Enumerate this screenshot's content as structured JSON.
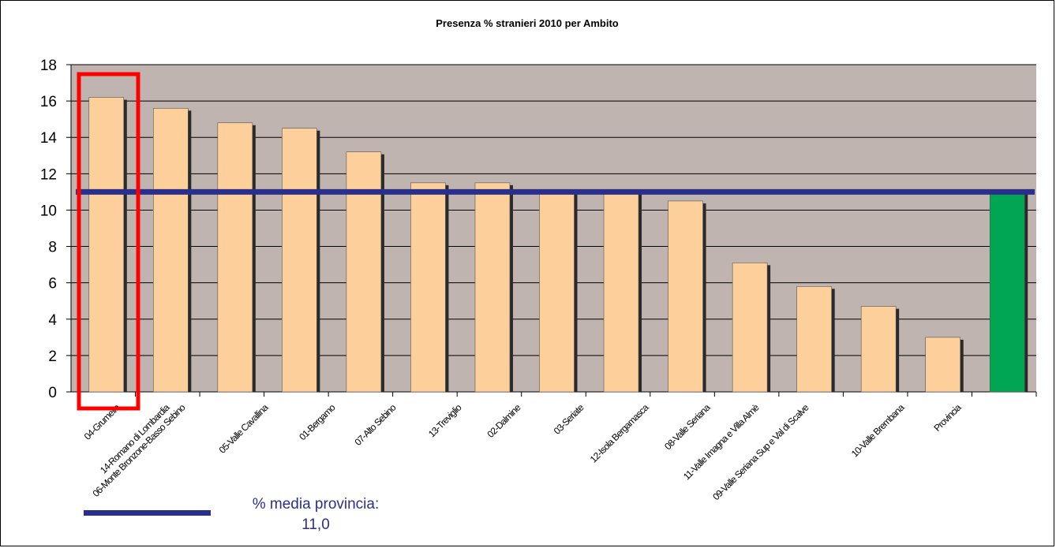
{
  "chart_data": {
    "type": "bar",
    "title": "Presenza % stranieri 2010 per Ambito",
    "categories": [
      "04-Grumello",
      "14-Romano di Lombardia",
      "06-Monte Bronzone-Basso Sebino",
      "05-Valle Cavallina",
      "01-Bergamo",
      "07-Alto Sebino",
      "13-Treviglio",
      "02-Dalmine",
      "03-Seriate",
      "12-Isola Bergamasca",
      "08-Valle Seriana",
      "11-Valle Imagna e Villa Almè",
      "09-Valle Seriana Sup e Val di Scalve",
      "10-Valle Brembana",
      "Provincia"
    ],
    "category_labels": [
      "04-Grumello",
      "14-Romano di Lombardia",
      "06-Monte Bronzone-Basso Sebino",
      "05-Valle Cavallina",
      "01-Bergamo",
      "07-Alto Sebino",
      "13-Treviglio",
      "02-Dalmine",
      "03-Seriate",
      "12-Isola Bergamasca",
      "08-Valle Seriana",
      "11-Valle Imagna e Villa Almè",
      "09-Valle Seriana Sup e Val di Scalve",
      "10-Valle Brembana",
      "Provincia"
    ],
    "bars": [
      {
        "label": "04-Grumello / 14-Romano di Lombardia",
        "value": 16.2,
        "color": "#fdd09b"
      },
      {
        "label": "06-Monte Bronzone-Basso Sebino",
        "value": 15.6,
        "color": "#fdd09b"
      },
      {
        "label": "05-Valle Cavallina",
        "value": 14.8,
        "color": "#fdd09b"
      },
      {
        "label": "01-Bergamo",
        "value": 14.5,
        "color": "#fdd09b"
      },
      {
        "label": "07-Alto Sebino",
        "value": 13.2,
        "color": "#fdd09b"
      },
      {
        "label": "13-Treviglio",
        "value": 11.5,
        "color": "#fdd09b"
      },
      {
        "label": "02-Dalmine",
        "value": 11.5,
        "color": "#fdd09b"
      },
      {
        "label": "03-Seriate",
        "value": 11.0,
        "color": "#fdd09b"
      },
      {
        "label": "12-Isola Bergamasca",
        "value": 11.0,
        "color": "#fdd09b"
      },
      {
        "label": "08-Valle Seriana",
        "value": 10.5,
        "color": "#fdd09b"
      },
      {
        "label": "11-Valle Imagna e Villa Almè",
        "value": 7.1,
        "color": "#fdd09b"
      },
      {
        "label": "09-Valle Seriana Sup e Val di Scalve",
        "value": 5.8,
        "color": "#fdd09b"
      },
      {
        "label": "10-Valle Brembana",
        "value": 4.7,
        "color": "#fdd09b"
      },
      {
        "label": "",
        "value": 3.0,
        "color": "#fdd09b"
      },
      {
        "label": "Provincia",
        "value": 11.0,
        "color": "#00a651"
      }
    ],
    "x_tick_labels": [
      "04-Grumello",
      "14-Romano di Lombardia",
      "06-Monte Bronzone-Basso Sebino",
      "05-Valle Cavallina",
      "01-Bergamo",
      "07-Alto Sebino",
      "13-Treviglio",
      "02-Dalmine",
      "03-Seriate",
      "12-Isola Bergamasca",
      "08-Valle Seriana",
      "11-Valle Imagna e Villa Almè",
      "09-Valle Seriana Sup e Val di Scalve",
      "10-Valle Brembana",
      "Provincia"
    ],
    "ylim": [
      0,
      18
    ],
    "yticks": [
      0,
      2,
      4,
      6,
      8,
      10,
      12,
      14,
      16,
      18
    ],
    "grid": true,
    "plot_background": "#c0b4b0",
    "reference_line": {
      "value": 11.0,
      "color": "#2b2f8c"
    },
    "highlight_box_color": "#ff0000",
    "legend": {
      "text": "% media provincia: 11,0",
      "color": "#2b2f8c",
      "position": "bottom-left"
    }
  },
  "legend_text": "% media provincia: 11,0"
}
